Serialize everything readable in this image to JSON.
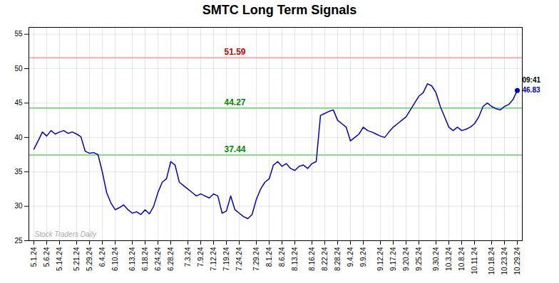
{
  "chart_data": {
    "type": "line",
    "title": "SMTC Long Term Signals",
    "categories": [
      "5.1.24",
      null,
      null,
      "5.6.24",
      null,
      null,
      "5.14.24",
      null,
      null,
      null,
      "5.21.24",
      null,
      null,
      "5.29.24",
      null,
      null,
      "6.4.24",
      null,
      null,
      "6.10.24",
      null,
      null,
      null,
      "6.13.24",
      null,
      null,
      "6.18.24",
      null,
      null,
      "6.24.24",
      null,
      null,
      "6.28.24",
      null,
      null,
      null,
      "7.3.24",
      null,
      null,
      "7.9.24",
      null,
      null,
      "7.12.24",
      null,
      null,
      "7.19.24",
      null,
      null,
      "7.24.24",
      null,
      null,
      null,
      "7.29.24",
      null,
      null,
      "8.1.24",
      null,
      null,
      "8.6.24",
      null,
      null,
      "8.13.24",
      null,
      null,
      null,
      "8.16.24",
      null,
      null,
      "8.22.24",
      null,
      null,
      "8.28.24",
      null,
      null,
      "9.4.24",
      null,
      null,
      "9.9.24",
      null,
      null,
      null,
      "9.12.24",
      null,
      null,
      "9.17.24",
      null,
      null,
      "9.20.24",
      null,
      null,
      "9.25.24",
      null,
      null,
      null,
      "9.30.24",
      null,
      null,
      "10.3.24",
      null,
      null,
      "10.8.24",
      null,
      null,
      "10.11.24",
      null,
      null,
      null,
      "10.18.24",
      null,
      null,
      "10.23.24",
      null,
      null,
      "10.29.24"
    ],
    "values": [
      38.3,
      39.5,
      40.8,
      40.2,
      41.0,
      40.5,
      40.8,
      41.0,
      40.6,
      40.8,
      40.5,
      40.1,
      38.0,
      37.7,
      37.8,
      37.5,
      35.0,
      32.0,
      30.5,
      29.5,
      29.8,
      30.2,
      29.5,
      29.0,
      29.2,
      28.8,
      29.5,
      28.9,
      30.0,
      32.0,
      33.5,
      34.0,
      36.5,
      36.0,
      33.5,
      33.0,
      32.5,
      32.0,
      31.5,
      31.8,
      31.5,
      31.2,
      31.8,
      31.5,
      29.0,
      29.3,
      31.5,
      29.5,
      29.0,
      28.5,
      28.2,
      28.8,
      31.0,
      32.5,
      33.5,
      34.0,
      36.0,
      36.5,
      35.8,
      36.2,
      35.5,
      35.2,
      35.8,
      36.0,
      35.5,
      36.2,
      36.5,
      43.2,
      43.5,
      43.8,
      44.0,
      42.5,
      42.0,
      41.5,
      39.5,
      40.0,
      40.5,
      41.5,
      41.0,
      40.8,
      40.5,
      40.2,
      40.0,
      40.8,
      41.5,
      42.0,
      42.5,
      43.0,
      44.0,
      45.0,
      46.0,
      46.5,
      47.8,
      47.5,
      46.5,
      44.5,
      43.0,
      41.5,
      41.0,
      41.5,
      41.0,
      41.2,
      41.5,
      42.0,
      43.0,
      44.5,
      45.0,
      44.5,
      44.2,
      44.0,
      44.5,
      44.8,
      45.5,
      46.83
    ],
    "color": "#0000cc",
    "hlines": [
      {
        "value": 51.59,
        "color": "#ffaaaa",
        "label_color": "#cc0000"
      },
      {
        "value": 44.27,
        "color": "#88dd88",
        "label_color": "#008800"
      },
      {
        "value": 37.44,
        "color": "#88dd88",
        "label_color": "#008800"
      }
    ],
    "last_point": {
      "time": "09:41",
      "price": 46.83,
      "color": "#0000cc",
      "label_color": "#0000cc"
    },
    "watermark": {
      "text": "Stock Traders Daily",
      "color": "#aaaaaa"
    },
    "ylim": [
      25,
      56
    ],
    "yticks": [
      25,
      30,
      35,
      40,
      45,
      50,
      55
    ],
    "grid": true
  }
}
